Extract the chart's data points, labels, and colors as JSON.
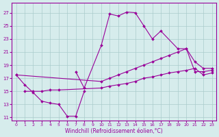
{
  "xlabel": "Windchill (Refroidissement éolien,°C)",
  "bg_color": "#d6ecec",
  "line_color": "#990099",
  "grid_color": "#aacccc",
  "xlim": [
    -0.5,
    23.5
  ],
  "ylim": [
    10.5,
    28.5
  ],
  "yticks": [
    11,
    13,
    15,
    17,
    19,
    21,
    23,
    25,
    27
  ],
  "xticks": [
    0,
    1,
    2,
    3,
    4,
    5,
    6,
    7,
    8,
    9,
    10,
    11,
    12,
    13,
    14,
    15,
    16,
    17,
    18,
    19,
    20,
    21,
    22,
    23
  ],
  "curves": [
    {
      "x": [
        0,
        1,
        2,
        3,
        4,
        5,
        6,
        7,
        8
      ],
      "y": [
        17.5,
        16.0,
        14.8,
        13.5,
        13.2,
        13.0,
        11.2,
        11.2,
        15.0
      ]
    },
    {
      "x": [
        7,
        8,
        10,
        11,
        12,
        13,
        14,
        15,
        16,
        17,
        19,
        20,
        21,
        22,
        23
      ],
      "y": [
        18.0,
        15.5,
        22.0,
        26.8,
        26.5,
        27.1,
        27.0,
        25.0,
        23.0,
        24.2,
        21.5,
        21.5,
        18.0,
        18.0,
        18.2
      ]
    },
    {
      "x": [
        0,
        10,
        11,
        12,
        13,
        14,
        15,
        16,
        17,
        18,
        19,
        20,
        21,
        22,
        23
      ],
      "y": [
        17.5,
        16.5,
        17.0,
        17.5,
        18.0,
        18.5,
        19.0,
        19.5,
        20.0,
        20.5,
        21.0,
        21.5,
        19.5,
        18.5,
        18.5
      ]
    },
    {
      "x": [
        1,
        2,
        3,
        4,
        5,
        10,
        11,
        12,
        13,
        14,
        15,
        16,
        17,
        18,
        19,
        20,
        21,
        22,
        23
      ],
      "y": [
        15.0,
        15.0,
        15.0,
        15.2,
        15.2,
        15.5,
        15.8,
        16.0,
        16.2,
        16.5,
        17.0,
        17.2,
        17.5,
        17.8,
        18.0,
        18.2,
        18.5,
        17.5,
        17.8
      ]
    }
  ]
}
